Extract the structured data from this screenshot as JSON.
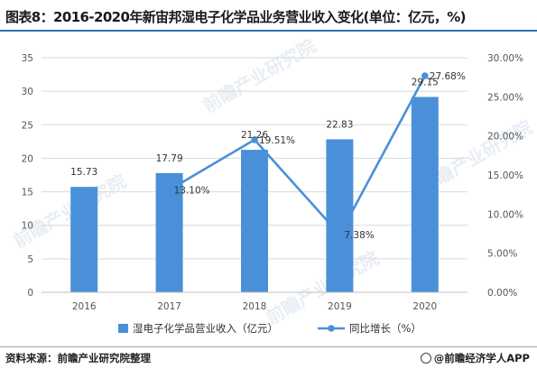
{
  "title": "图表8：2016-2020年新宙邦湿电子化学品业务营业收入变化(单位：亿元，%)",
  "source": "资料来源：前瞻产业研究院整理",
  "brand": "@前瞻经济学人APP",
  "watermark": "前瞻产业研究院",
  "colors": {
    "bar": "#4a90d9",
    "line": "#4a90d9",
    "title_rule": "#2e6fb7"
  },
  "chart_data": {
    "type": "bar",
    "categories": [
      "2016",
      "2017",
      "2018",
      "2019",
      "2020"
    ],
    "series": [
      {
        "name": "湿电子化学品营业收入（亿元）",
        "type": "bar",
        "axis": "left",
        "values": [
          15.73,
          17.79,
          21.26,
          22.83,
          29.15
        ],
        "labels": [
          "15.73",
          "17.79",
          "21.26",
          "22.83",
          "29.15"
        ]
      },
      {
        "name": "同比增长（%）",
        "type": "line",
        "axis": "right",
        "x": [
          "2017",
          "2018",
          "2019",
          "2020"
        ],
        "values": [
          13.1,
          19.51,
          7.38,
          27.68
        ],
        "labels": [
          "13.10%",
          "19.51%",
          "7.38%",
          "27.68%"
        ]
      }
    ],
    "y_left": {
      "min": 0,
      "max": 35,
      "step": 5,
      "ticks": [
        "0",
        "5",
        "10",
        "15",
        "20",
        "25",
        "30",
        "35"
      ]
    },
    "y_right": {
      "min": 0,
      "max": 30,
      "step": 5,
      "ticks": [
        "0.00%",
        "5.00%",
        "10.00%",
        "15.00%",
        "20.00%",
        "25.00%",
        "30.00%"
      ]
    },
    "grid": "horizontal",
    "legend_position": "bottom"
  }
}
